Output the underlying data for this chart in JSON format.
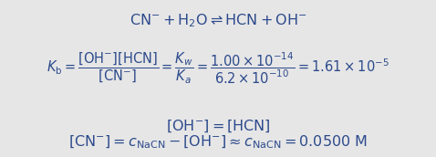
{
  "background_color": "#e6e6e6",
  "text_color": "#2c4a8c",
  "figsize": [
    4.78,
    1.72
  ],
  "dpi": 100
}
